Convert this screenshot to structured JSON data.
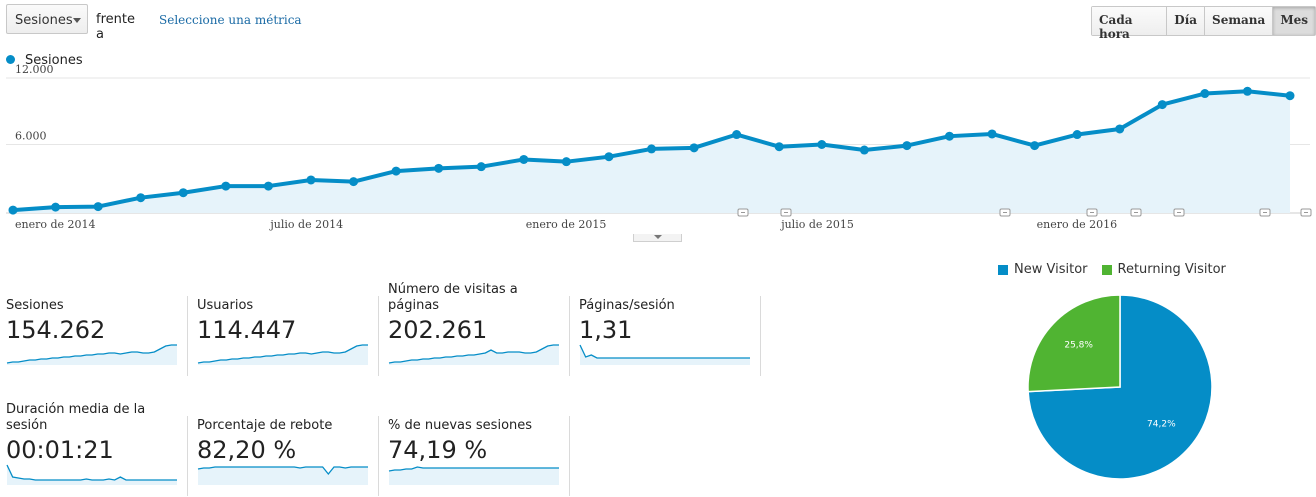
{
  "toolbar": {
    "metric_select": "Sesiones",
    "versus_text": "frente a",
    "select_metric_link": "Seleccione una métrica",
    "granularity": [
      {
        "label": "Cada hora",
        "active": false
      },
      {
        "label": "Día",
        "active": false
      },
      {
        "label": "Semana",
        "active": false
      },
      {
        "label": "Mes",
        "active": true
      }
    ]
  },
  "chart_data": [
    {
      "type": "area",
      "series": [
        {
          "name": "Sesiones",
          "color": "#058dc7",
          "x": [
            "2014-01",
            "2014-02",
            "2014-03",
            "2014-04",
            "2014-05",
            "2014-06",
            "2014-07",
            "2014-08",
            "2014-09",
            "2014-10",
            "2014-11",
            "2014-12",
            "2015-01",
            "2015-02",
            "2015-03",
            "2015-04",
            "2015-05",
            "2015-06",
            "2015-07",
            "2015-08",
            "2015-09",
            "2015-10",
            "2015-11",
            "2015-12",
            "2016-01",
            "2016-02",
            "2016-03",
            "2016-04",
            "2016-05",
            "2016-06",
            "2016-07"
          ],
          "values": [
            80,
            350,
            400,
            1200,
            1650,
            2250,
            2250,
            2800,
            2650,
            3600,
            3850,
            4000,
            4650,
            4450,
            4900,
            5600,
            5700,
            6900,
            5800,
            6000,
            5500,
            5900,
            6750,
            6950,
            5900,
            6900,
            7400,
            9600,
            10600,
            10800,
            10400
          ]
        }
      ],
      "ylim": [
        0,
        12000
      ],
      "yticks": [
        "6.000",
        "12.000"
      ],
      "xtick_labels": [
        {
          "label": "enero de 2014",
          "month": 0
        },
        {
          "label": "julio de 2014",
          "month": 6
        },
        {
          "label": "enero de 2015",
          "month": 12
        },
        {
          "label": "julio de 2015",
          "month": 18
        },
        {
          "label": "enero de 2016",
          "month": 24
        }
      ],
      "annotation_markers": 9,
      "legend": "top-left",
      "grid": true
    },
    {
      "type": "pie",
      "slices": [
        {
          "label": "New Visitor",
          "value": 74.2,
          "display": "74,2%",
          "color": "#058dc7"
        },
        {
          "label": "Returning Visitor",
          "value": 25.8,
          "display": "25,8%",
          "color": "#50b432"
        }
      ],
      "legend": "top"
    }
  ],
  "tiles": [
    {
      "label": "Sesiones",
      "value": "154.262",
      "spark": [
        2,
        3,
        3,
        4,
        5,
        5,
        6,
        6,
        7,
        7,
        8,
        8,
        9,
        9,
        10,
        10,
        11,
        11,
        12,
        12,
        11,
        12,
        13,
        13,
        12,
        12,
        13,
        16,
        19,
        20,
        20
      ]
    },
    {
      "label": "Usuarios",
      "value": "114.447",
      "spark": [
        2,
        3,
        3,
        4,
        5,
        5,
        6,
        6,
        7,
        7,
        8,
        8,
        9,
        9,
        10,
        10,
        11,
        11,
        12,
        12,
        11,
        12,
        13,
        13,
        12,
        12,
        13,
        16,
        19,
        20,
        20
      ]
    },
    {
      "label": "Número de visitas a páginas",
      "value": "202.261",
      "spark": [
        2,
        3,
        3,
        4,
        5,
        5,
        6,
        6,
        7,
        7,
        8,
        8,
        9,
        9,
        10,
        10,
        11,
        12,
        15,
        12,
        12,
        13,
        13,
        13,
        12,
        12,
        13,
        16,
        19,
        20,
        20
      ]
    },
    {
      "label": "Páginas/sesión",
      "value": "1,31",
      "spark": [
        20,
        8,
        10,
        7,
        7,
        7,
        7,
        7,
        7,
        7,
        7,
        7,
        7,
        7,
        7,
        7,
        7,
        7,
        7,
        7,
        7,
        7,
        7,
        7,
        7,
        7,
        7,
        7,
        7,
        7,
        7
      ]
    },
    {
      "label": "Duración media de la sesión",
      "value": "00:01:21",
      "spark": [
        20,
        8,
        7,
        6,
        6,
        5,
        5,
        5,
        5,
        5,
        5,
        5,
        5,
        5,
        6,
        5,
        5,
        5,
        6,
        5,
        8,
        5,
        5,
        5,
        5,
        5,
        5,
        5,
        5,
        5,
        5
      ]
    },
    {
      "label": "Porcentaje de rebote",
      "value": "82,20 %",
      "spark": [
        16,
        17,
        17,
        18,
        18,
        18,
        18,
        18,
        18,
        18,
        18,
        18,
        18,
        18,
        18,
        18,
        18,
        18,
        17,
        18,
        18,
        18,
        18,
        11,
        18,
        18,
        17,
        18,
        18,
        18,
        18
      ]
    },
    {
      "label": "% de nuevas sesiones",
      "value": "74,19 %",
      "spark": [
        14,
        15,
        15,
        16,
        16,
        18,
        17,
        17,
        17,
        17,
        17,
        17,
        17,
        17,
        17,
        17,
        17,
        17,
        17,
        17,
        17,
        17,
        17,
        17,
        17,
        17,
        17,
        17,
        17,
        17,
        17
      ]
    }
  ]
}
